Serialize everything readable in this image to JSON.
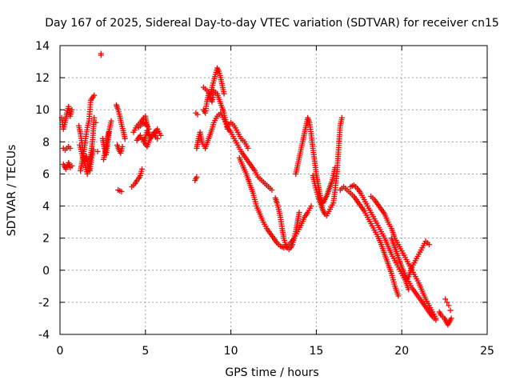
{
  "chart_data": {
    "type": "scatter",
    "title": "Day 167 of 2025, Sidereal Day-to-day VTEC variation (SDTVAR) for receiver cn15",
    "xlabel": "GPS time / hours",
    "ylabel": "SDTVAR / TECUs",
    "xlim": [
      0,
      25
    ],
    "ylim": [
      -4,
      14
    ],
    "xticks": [
      0,
      5,
      10,
      15,
      20,
      25
    ],
    "yticks": [
      -4,
      -2,
      0,
      2,
      4,
      6,
      8,
      10,
      12,
      14
    ],
    "grid": true,
    "legend": "none",
    "marker": "+",
    "series": [
      {
        "name": "SDTVAR",
        "color": "#ff0000",
        "x": [
          0.1,
          0.2,
          0.3,
          0.4,
          0.5,
          0.6,
          0.7,
          0.2,
          0.3,
          0.5,
          0.6,
          0.2,
          0.35,
          0.5,
          0.6,
          0.7,
          1.1,
          1.2,
          1.3,
          1.4,
          1.5,
          1.6,
          1.7,
          1.8,
          1.9,
          2.0,
          1.2,
          1.3,
          1.4,
          1.5,
          1.6,
          1.7,
          1.8,
          2.0,
          2.1,
          2.2,
          1.15,
          1.25,
          1.35,
          1.45,
          1.55,
          1.65,
          1.75,
          1.85,
          1.95,
          2.4,
          2.5,
          2.6,
          2.7,
          2.8,
          2.9,
          3.0,
          2.55,
          2.65,
          2.75,
          2.85,
          3.3,
          3.4,
          3.5,
          3.6,
          3.7,
          3.8,
          3.35,
          3.45,
          3.55,
          3.65,
          3.4,
          3.6,
          2.4,
          4.2,
          4.3,
          4.4,
          4.5,
          4.6,
          4.7,
          4.8,
          4.9,
          5.0,
          5.1,
          5.2,
          5.3,
          5.4,
          5.5,
          5.6,
          5.7,
          4.3,
          4.5,
          4.7,
          4.9,
          5.0,
          5.1,
          4.5,
          4.7,
          4.9,
          5.1,
          5.3,
          5.5,
          5.7,
          5.9,
          4.6,
          4.8,
          5.0,
          5.2,
          7.9,
          8.0,
          7.95,
          8.05,
          8.4,
          8.6,
          8.8,
          9.0,
          9.1,
          9.2,
          9.3,
          9.4,
          9.5,
          9.6,
          8.4,
          8.5,
          8.6,
          8.7,
          8.8,
          8.9,
          9.0,
          9.2,
          9.4,
          9.6,
          9.8,
          8.0,
          8.1,
          8.2,
          8.3,
          8.5,
          8.7,
          8.9,
          9.0,
          9.2,
          9.4,
          9.6,
          9.8,
          10.0,
          10.2,
          10.4,
          10.6,
          10.8,
          11.0,
          9.8,
          10.0,
          10.2,
          10.4,
          10.6,
          10.8,
          11.0,
          11.2,
          11.4,
          11.6,
          11.8,
          12.0,
          12.2,
          12.4,
          10.5,
          10.7,
          10.9,
          11.1,
          11.3,
          11.5,
          11.7,
          11.9,
          12.1,
          12.3,
          12.5,
          12.7,
          12.9,
          13.1,
          13.3,
          13.5,
          13.7,
          13.9,
          14.1,
          14.3,
          14.5,
          14.7,
          12.6,
          12.7,
          12.8,
          12.9,
          13.0,
          13.1,
          13.2,
          13.3,
          13.4,
          13.5,
          13.6,
          13.7,
          13.8,
          13.9,
          14.0,
          13.8,
          13.9,
          14.0,
          14.1,
          14.2,
          14.3,
          14.4,
          14.5,
          14.6,
          14.7,
          14.8,
          14.9,
          15.0,
          15.1,
          15.2,
          15.3,
          15.4,
          15.5,
          15.6,
          15.7,
          15.8,
          15.9,
          16.0,
          16.1,
          14.8,
          14.9,
          15.0,
          15.1,
          15.2,
          15.3,
          15.4,
          15.5,
          15.6,
          15.8,
          16.0,
          16.1,
          16.2,
          16.3,
          16.4,
          16.5,
          16.4,
          16.6,
          16.8,
          17.0,
          17.2,
          17.4,
          17.6,
          17.8,
          18.0,
          18.2,
          18.4,
          18.6,
          18.8,
          19.0,
          19.2,
          19.4,
          19.6,
          19.8,
          17.0,
          17.2,
          17.4,
          17.6,
          17.8,
          18.0,
          18.2,
          18.4,
          18.6,
          18.8,
          19.0,
          19.2,
          19.4,
          19.6,
          19.8,
          20.0,
          20.2,
          20.4,
          18.2,
          18.4,
          18.6,
          18.8,
          19.0,
          19.2,
          19.4,
          19.6,
          19.8,
          20.0,
          20.2,
          20.4,
          20.6,
          20.8,
          21.0,
          21.2,
          21.4,
          21.6,
          21.8,
          22.0,
          19.4,
          19.6,
          19.8,
          20.0,
          20.2,
          20.4,
          20.6,
          20.8,
          21.0,
          21.2,
          21.4,
          21.6,
          21.8,
          22.0,
          20.0,
          20.2,
          20.4,
          20.6,
          20.8,
          21.0,
          21.2,
          21.4,
          21.6,
          22.2,
          22.3,
          22.4,
          22.5,
          22.6,
          22.7,
          22.8,
          22.9,
          22.85,
          22.75,
          22.65,
          22.55
        ],
        "y": [
          9.5,
          8.8,
          9.2,
          9.8,
          10.2,
          9.6,
          10.0,
          7.6,
          7.5,
          7.7,
          7.6,
          6.6,
          6.3,
          6.7,
          6.4,
          6.5,
          9.0,
          8.5,
          7.8,
          7.0,
          6.4,
          6.0,
          6.5,
          7.2,
          8.0,
          9.5,
          6.2,
          6.8,
          7.4,
          8.2,
          8.9,
          9.3,
          10.6,
          10.9,
          9.2,
          7.4,
          7.8,
          7.4,
          7.0,
          6.8,
          7.1,
          6.5,
          6.2,
          7.0,
          7.5,
          13.4,
          8.2,
          7.6,
          7.2,
          8.0,
          8.8,
          9.3,
          6.9,
          7.4,
          8.1,
          8.6,
          10.3,
          10.0,
          9.6,
          9.1,
          8.7,
          8.2,
          7.8,
          7.5,
          7.3,
          7.7,
          5.0,
          4.9,
          13.5,
          5.2,
          5.3,
          5.4,
          5.6,
          5.7,
          5.9,
          6.3,
          8.0,
          8.3,
          8.7,
          8.5,
          8.2,
          8.4,
          8.6,
          8.3,
          8.2,
          8.6,
          9.0,
          9.2,
          9.5,
          9.6,
          9.0,
          8.1,
          8.4,
          8.0,
          7.7,
          8.3,
          8.5,
          8.8,
          8.4,
          8.9,
          9.1,
          9.2,
          8.8,
          5.6,
          5.8,
          9.8,
          9.7,
          11.4,
          11.2,
          11.0,
          11.8,
          12.2,
          12.6,
          12.4,
          12.0,
          11.5,
          11.0,
          10.0,
          9.8,
          10.5,
          11.0,
          10.8,
          10.5,
          11.2,
          11.0,
          10.4,
          9.8,
          8.8,
          7.6,
          8.2,
          8.6,
          8.0,
          7.6,
          8.2,
          8.8,
          9.2,
          9.6,
          9.8,
          9.4,
          9.0,
          9.2,
          9.0,
          8.6,
          8.2,
          8.0,
          7.6,
          8.9,
          8.6,
          8.2,
          7.8,
          7.4,
          7.1,
          6.8,
          6.5,
          6.2,
          5.8,
          5.6,
          5.4,
          5.2,
          5.0,
          7.0,
          6.5,
          6.0,
          5.4,
          4.8,
          4.0,
          3.5,
          3.0,
          2.6,
          2.3,
          2.0,
          1.7,
          1.5,
          1.4,
          1.5,
          1.7,
          2.0,
          2.4,
          2.8,
          3.3,
          3.6,
          4.0,
          4.5,
          4.2,
          3.8,
          3.3,
          2.6,
          2.0,
          1.6,
          1.4,
          1.3,
          1.4,
          1.6,
          2.0,
          2.4,
          3.0,
          3.6,
          6.0,
          6.5,
          7.0,
          7.5,
          8.0,
          8.5,
          9.0,
          9.5,
          9.2,
          8.5,
          7.6,
          6.8,
          6.0,
          5.4,
          4.8,
          4.4,
          4.2,
          4.4,
          4.6,
          4.9,
          5.2,
          5.5,
          5.9,
          6.4,
          5.9,
          5.4,
          5.0,
          4.6,
          4.3,
          4.0,
          3.7,
          3.5,
          3.4,
          3.8,
          4.2,
          5.0,
          6.0,
          7.5,
          9.0,
          9.5,
          5.0,
          5.2,
          5.0,
          4.8,
          4.6,
          4.3,
          4.0,
          3.7,
          3.3,
          2.9,
          2.5,
          2.1,
          1.6,
          1.0,
          0.4,
          -0.2,
          -1.0,
          -1.6,
          5.2,
          5.3,
          5.1,
          4.8,
          4.4,
          4.0,
          3.6,
          3.2,
          2.8,
          2.4,
          2.0,
          1.5,
          1.0,
          0.6,
          0.2,
          -0.2,
          -0.6,
          -1.2,
          4.6,
          4.4,
          4.1,
          3.8,
          3.5,
          3.0,
          2.6,
          2.0,
          1.6,
          1.2,
          0.8,
          0.4,
          0.0,
          -0.4,
          -0.8,
          -1.3,
          -1.8,
          -2.2,
          -2.6,
          -3.0,
          2.0,
          1.4,
          0.8,
          0.2,
          -0.3,
          -0.7,
          -1.1,
          -1.4,
          -1.7,
          -2.0,
          -2.3,
          -2.6,
          -2.9,
          -3.1,
          -0.2,
          -0.6,
          -0.4,
          0.2,
          0.6,
          1.0,
          1.4,
          1.8,
          1.6,
          -2.6,
          -2.8,
          -2.9,
          -3.0,
          -3.2,
          -3.4,
          -3.2,
          -3.0,
          -2.5,
          -2.2,
          -2.0,
          -1.8
        ]
      }
    ]
  }
}
